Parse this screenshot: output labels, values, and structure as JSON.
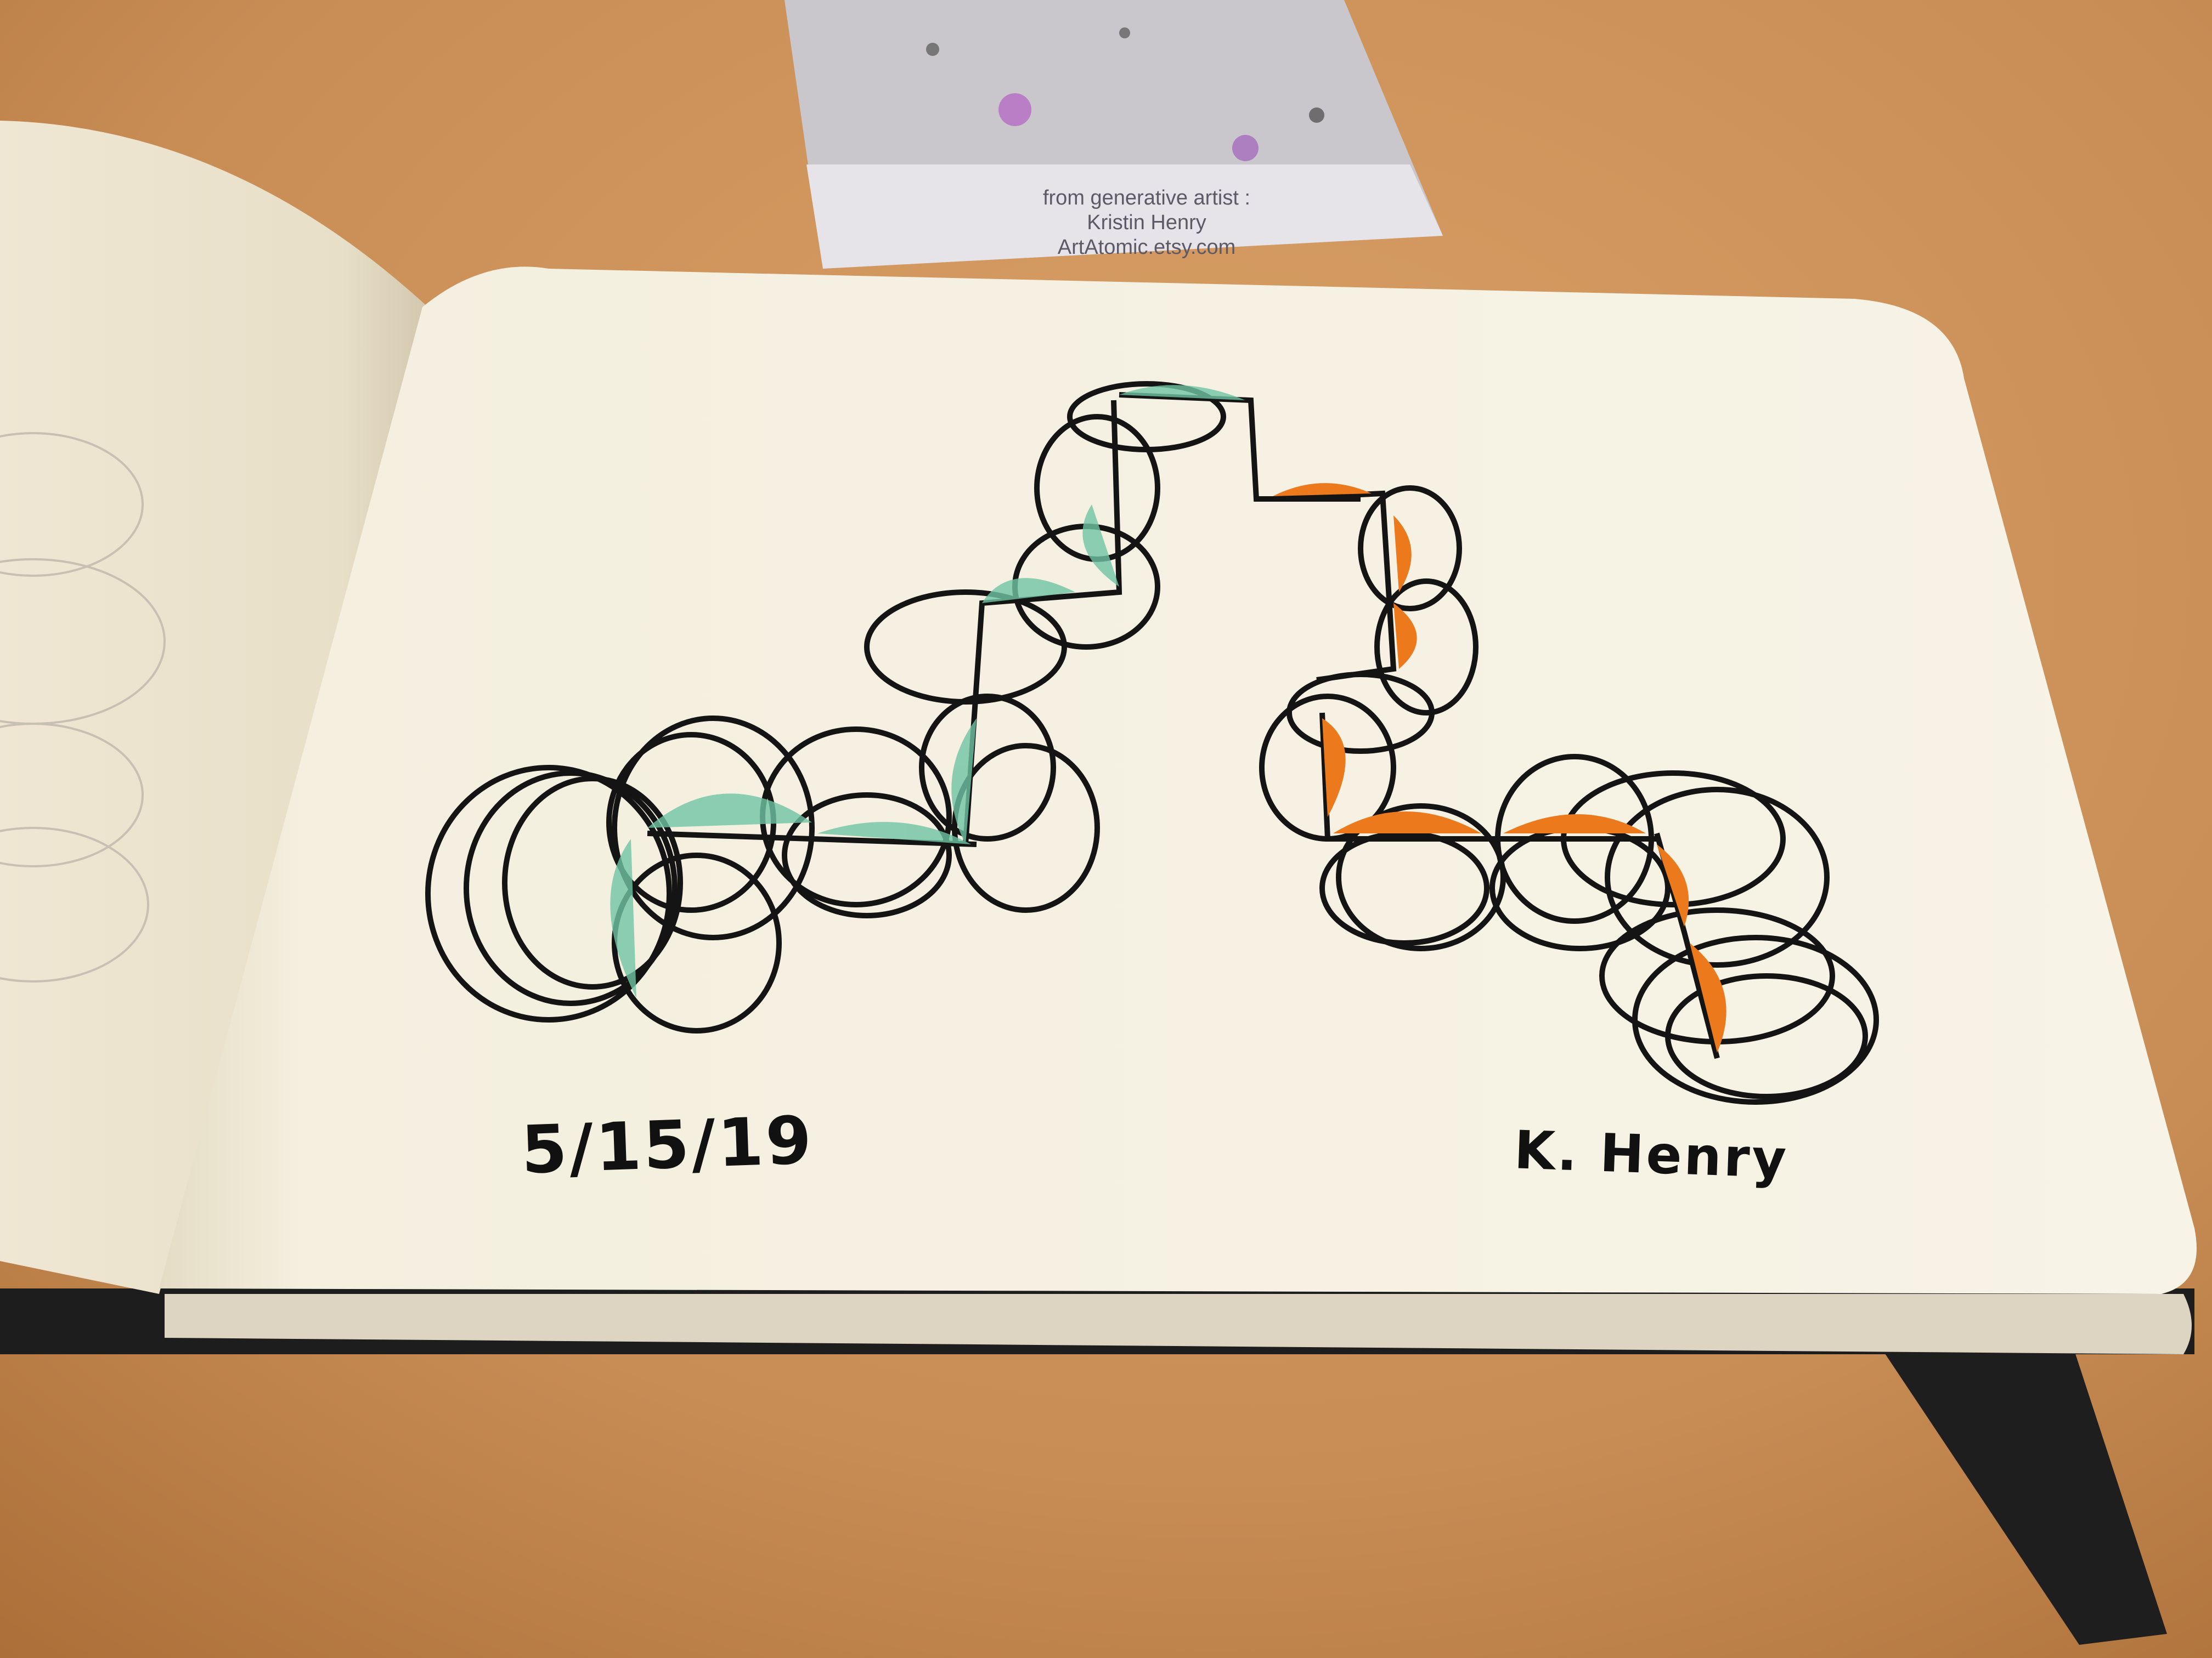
{
  "card": {
    "line1": "from generative artist :",
    "line2": "Kristin Henry",
    "line3": "ArtAtomic.etsy.com"
  },
  "drawing": {
    "date": "5/15/19",
    "signature": "K. Henry"
  },
  "colors": {
    "table": "#c98f57",
    "paper": "#f5f0e1",
    "ink": "#141414",
    "teal_wash": "#6fc4a4",
    "orange_fill": "#ec7a1c",
    "cover": "#1b1b1b"
  }
}
